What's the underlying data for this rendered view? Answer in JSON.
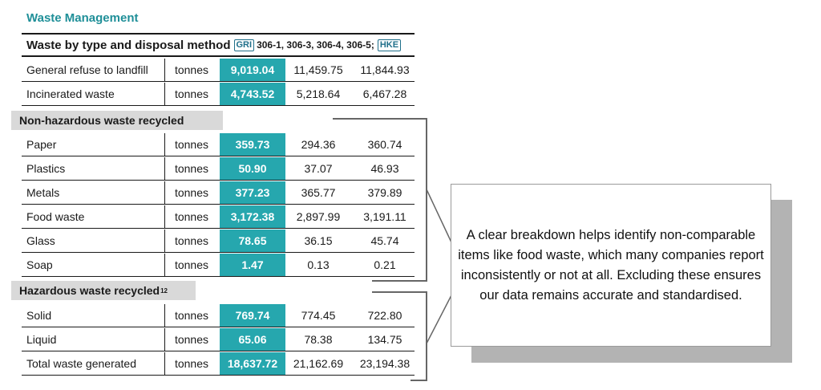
{
  "section_title": "Waste Management",
  "subtitle": {
    "main": "Waste by type and disposal method",
    "badge1": "GRI",
    "codes": "306-1, 306-3, 306-4, 306-5;",
    "badge2": "HKE"
  },
  "rows_top": [
    {
      "label": "General refuse to landfill",
      "unit": "tonnes",
      "v1": "9,019.04",
      "v2": "11,459.75",
      "v3": "11,844.93"
    },
    {
      "label": "Incinerated waste",
      "unit": "tonnes",
      "v1": "4,743.52",
      "v2": "5,218.64",
      "v3": "6,467.28"
    }
  ],
  "group_nonhaz": "Non-hazardous waste recycled",
  "rows_nonhaz": [
    {
      "label": "Paper",
      "unit": "tonnes",
      "v1": "359.73",
      "v2": "294.36",
      "v3": "360.74"
    },
    {
      "label": "Plastics",
      "unit": "tonnes",
      "v1": "50.90",
      "v2": "37.07",
      "v3": "46.93"
    },
    {
      "label": "Metals",
      "unit": "tonnes",
      "v1": "377.23",
      "v2": "365.77",
      "v3": "379.89"
    },
    {
      "label": "Food waste",
      "unit": "tonnes",
      "v1": "3,172.38",
      "v2": "2,897.99",
      "v3": "3,191.11"
    },
    {
      "label": "Glass",
      "unit": "tonnes",
      "v1": "78.65",
      "v2": "36.15",
      "v3": "45.74"
    },
    {
      "label": "Soap",
      "unit": "tonnes",
      "v1": "1.47",
      "v2": "0.13",
      "v3": "0.21"
    }
  ],
  "group_haz": "Hazardous waste recycled",
  "group_haz_note": "12",
  "rows_haz": [
    {
      "label": "Solid",
      "unit": "tonnes",
      "v1": "769.74",
      "v2": "774.45",
      "v3": "722.80"
    },
    {
      "label": "Liquid",
      "unit": "tonnes",
      "v1": "65.06",
      "v2": "78.38",
      "v3": "134.75"
    },
    {
      "label": "Total waste generated",
      "unit": "tonnes",
      "v1": "18,637.72",
      "v2": "21,162.69",
      "v3": "23,194.38"
    }
  ],
  "callout_text": "A clear breakdown helps identify non-comparable items like food waste, which many companies report inconsistently or not at all. Excluding these ensures our data remains accurate and standardised.",
  "colors": {
    "highlight": "#26a7ae",
    "title": "#1f8f98",
    "group_bg": "#d9d9d9"
  }
}
